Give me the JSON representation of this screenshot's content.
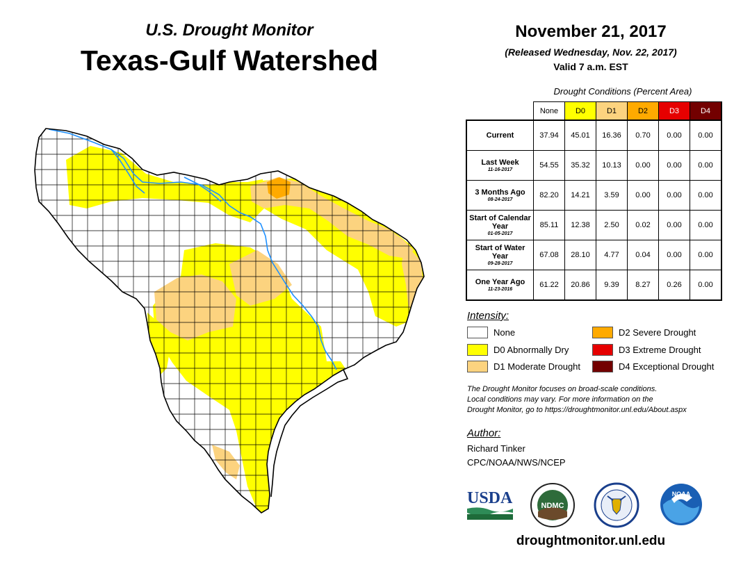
{
  "header": {
    "subtitle": "U.S. Drought Monitor",
    "title": "Texas-Gulf Watershed",
    "date": "November 21, 2017",
    "released": "(Released Wednesday, Nov. 22, 2017)",
    "valid": "Valid 7 a.m. EST"
  },
  "table": {
    "caption": "Drought Conditions (Percent Area)",
    "columns": [
      {
        "label": "None",
        "color": "#ffffff",
        "text": "#000000"
      },
      {
        "label": "D0",
        "color": "#ffff00",
        "text": "#000000"
      },
      {
        "label": "D1",
        "color": "#fcd37f",
        "text": "#000000"
      },
      {
        "label": "D2",
        "color": "#ffaa00",
        "text": "#000000"
      },
      {
        "label": "D3",
        "color": "#e60000",
        "text": "#ffffff"
      },
      {
        "label": "D4",
        "color": "#730000",
        "text": "#ffffff"
      }
    ],
    "rows": [
      {
        "label": "Current",
        "date": "",
        "values": [
          "37.94",
          "45.01",
          "16.36",
          "0.70",
          "0.00",
          "0.00"
        ]
      },
      {
        "label": "Last Week",
        "date": "11-16-2017",
        "values": [
          "54.55",
          "35.32",
          "10.13",
          "0.00",
          "0.00",
          "0.00"
        ]
      },
      {
        "label": "3 Months Ago",
        "date": "08-24-2017",
        "values": [
          "82.20",
          "14.21",
          "3.59",
          "0.00",
          "0.00",
          "0.00"
        ]
      },
      {
        "label": "Start of Calendar Year",
        "date": "01-05-2017",
        "values": [
          "85.11",
          "12.38",
          "2.50",
          "0.02",
          "0.00",
          "0.00"
        ]
      },
      {
        "label": "Start of Water Year",
        "date": "09-28-2017",
        "values": [
          "67.08",
          "28.10",
          "4.77",
          "0.04",
          "0.00",
          "0.00"
        ]
      },
      {
        "label": "One Year Ago",
        "date": "11-23-2016",
        "values": [
          "61.22",
          "20.86",
          "9.39",
          "8.27",
          "0.26",
          "0.00"
        ]
      }
    ]
  },
  "legend": {
    "title": "Intensity:",
    "items": [
      {
        "label": "None",
        "color": "#ffffff"
      },
      {
        "label": "D0 Abnormally Dry",
        "color": "#ffff00"
      },
      {
        "label": "D1 Moderate Drought",
        "color": "#fcd37f"
      },
      {
        "label": "D2 Severe Drought",
        "color": "#ffaa00"
      },
      {
        "label": "D3 Extreme Drought",
        "color": "#e60000"
      },
      {
        "label": "D4 Exceptional Drought",
        "color": "#730000"
      }
    ]
  },
  "note": {
    "line1": "The Drought Monitor focuses on broad-scale conditions.",
    "line2": "Local conditions may vary. For more information on the",
    "line3": "Drought Monitor, go to https://droughtmonitor.unl.edu/About.aspx"
  },
  "author": {
    "heading": "Author:",
    "name": "Richard Tinker",
    "org": "CPC/NOAA/NWS/NCEP"
  },
  "logos": {
    "usda": "USDA",
    "ndmc": "NDMC",
    "noaa": "NOAA"
  },
  "footer": {
    "url": "droughtmonitor.unl.edu"
  },
  "map": {
    "region": "Texas-Gulf Watershed",
    "water_color": "#1e90ff",
    "county_line_color": "#000000"
  }
}
